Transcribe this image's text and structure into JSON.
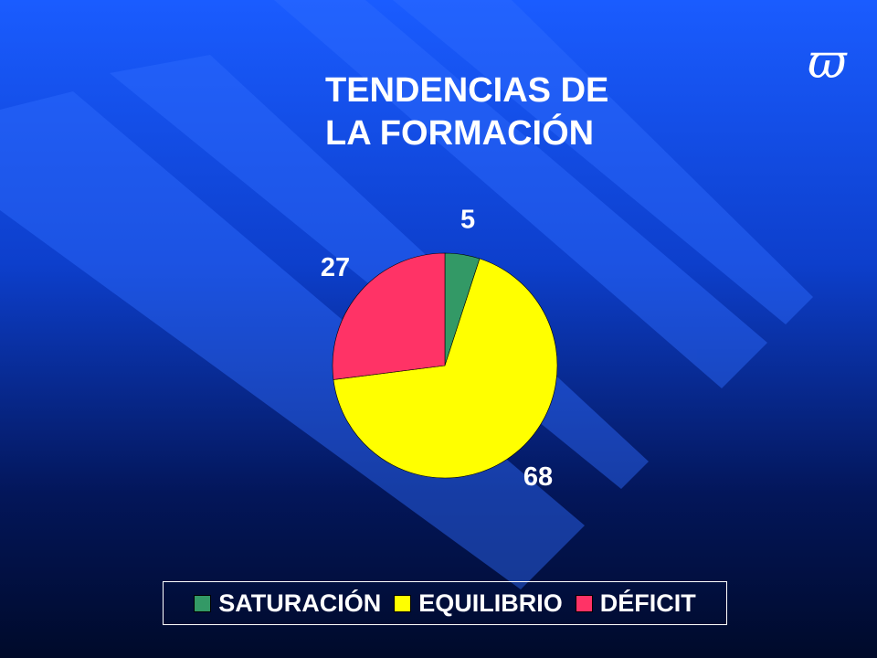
{
  "logo": "ϖ",
  "chart_data": {
    "type": "pie",
    "title": "TENDENCIAS DE LA FORMACIÓN",
    "categories": [
      "SATURACIÓN",
      "EQUILIBRIO",
      "DÉFICIT"
    ],
    "values": [
      5,
      68,
      27
    ],
    "colors": [
      "#339966",
      "#ffff00",
      "#ff3366"
    ],
    "legend": "bottom"
  }
}
